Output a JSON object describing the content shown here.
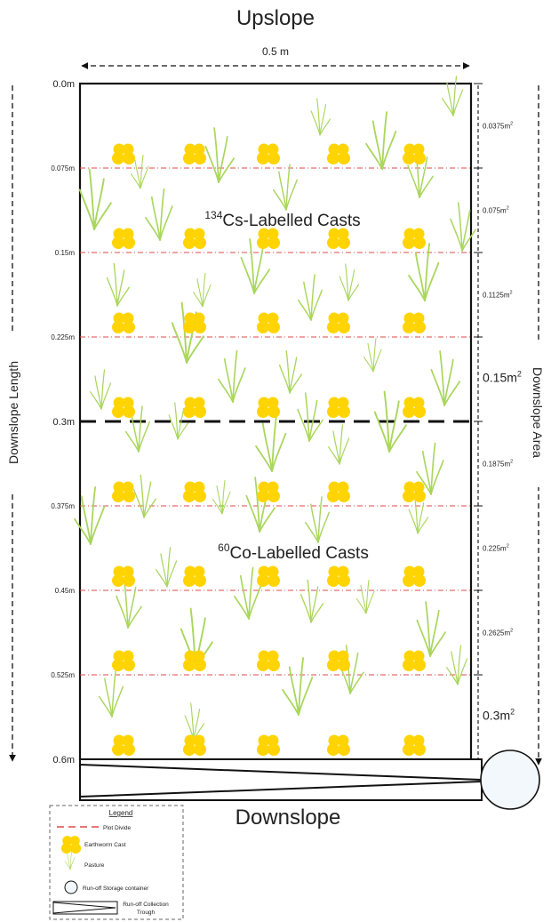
{
  "title_top": "Upslope",
  "width_label": "0.5 m",
  "title_bottom": "Downslope",
  "side_left": "Downslope Length",
  "side_right": "Downslope Area",
  "upper_zone": {
    "sup": "134",
    "text": "Cs-Labelled Casts"
  },
  "lower_zone": {
    "sup": "60",
    "text": "Co-Labelled Casts"
  },
  "length_ticks": [
    "0.0m",
    "0.075m",
    "0.15m",
    "0.225m",
    "0.3m",
    "0.375m",
    "0.45m",
    "0.525m",
    "0.6m"
  ],
  "area_labels": [
    {
      "base": "0.0375m",
      "exp": "2"
    },
    {
      "base": "0.075m",
      "exp": "2"
    },
    {
      "base": "0.1125m",
      "exp": "2"
    },
    {
      "base": "0.15m",
      "exp": "2"
    },
    {
      "base": "0.1875m",
      "exp": "2"
    },
    {
      "base": "0.225m",
      "exp": "2"
    },
    {
      "base": "0.2625m",
      "exp": "2"
    },
    {
      "base": "0.3m",
      "exp": "2"
    }
  ],
  "legend": {
    "title": "Legend",
    "items": [
      "Plot Divide",
      "Earthworm Cast",
      "Pasture",
      "Run-off Storage container"
    ],
    "trough_line1": "Run-off Collection",
    "trough_line2": "Trough"
  },
  "colors": {
    "cast": "#ffd400",
    "grass": "#a9d65c",
    "divide": "#e04a4a",
    "line": "#111111",
    "container_fill": "#f3f8fc"
  }
}
